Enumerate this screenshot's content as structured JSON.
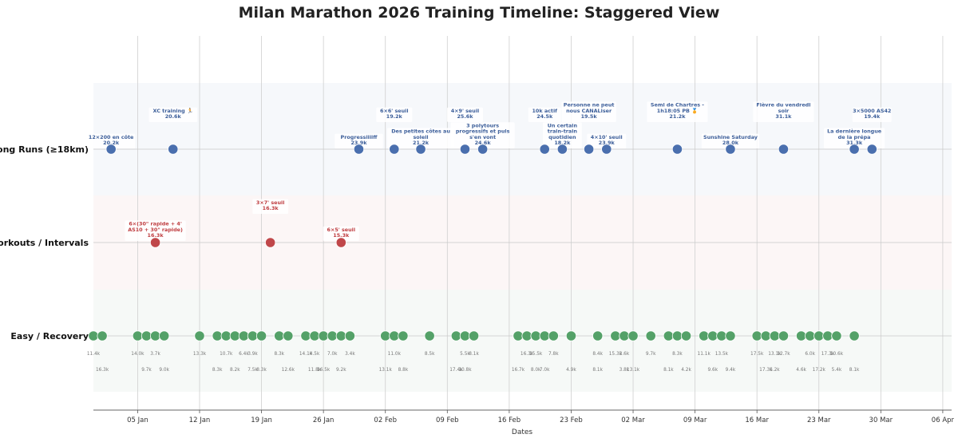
{
  "chart_data": {
    "type": "scatter",
    "title": "Milan Marathon 2026 Training Timeline: Staggered View",
    "xlabel": "Dates",
    "xlim": [
      "2025-12-31",
      "2026-04-07"
    ],
    "x_ticks": [
      {
        "date": "2026-01-05",
        "label": "05 Jan"
      },
      {
        "date": "2026-01-12",
        "label": "12 Jan"
      },
      {
        "date": "2026-01-19",
        "label": "19 Jan"
      },
      {
        "date": "2026-01-26",
        "label": "26 Jan"
      },
      {
        "date": "2026-02-02",
        "label": "02 Feb"
      },
      {
        "date": "2026-02-09",
        "label": "09 Feb"
      },
      {
        "date": "2026-02-16",
        "label": "16 Feb"
      },
      {
        "date": "2026-02-23",
        "label": "23 Feb"
      },
      {
        "date": "2026-03-02",
        "label": "02 Mar"
      },
      {
        "date": "2026-03-09",
        "label": "09 Mar"
      },
      {
        "date": "2026-03-16",
        "label": "16 Mar"
      },
      {
        "date": "2026-03-23",
        "label": "23 Mar"
      },
      {
        "date": "2026-03-30",
        "label": "30 Mar"
      },
      {
        "date": "2026-04-06",
        "label": "06 Apr"
      }
    ],
    "lanes": [
      "Long Runs (≥18km)",
      "Workouts / Intervals",
      "Easy / Recovery"
    ],
    "colors": {
      "long": "#4a6fae",
      "workout": "#c0474a",
      "easy": "#54a168",
      "long_band": "#f6f8fb",
      "workout_band": "#fcf6f6",
      "easy_band": "#f6f9f7",
      "long_text": "#3d5f9a",
      "workout_text": "#bf3d40"
    },
    "series": [
      {
        "name": "Long Runs (≥18km)",
        "points": [
          {
            "date": "2026-01-02",
            "label": "12×200 en côte",
            "distance": "20.2k",
            "level": 0
          },
          {
            "date": "2026-01-09",
            "label": "XC training 🏃",
            "distance": "20.6k",
            "level": 1
          },
          {
            "date": "2026-01-30",
            "label": "Progressiiiiff",
            "distance": "23.9k",
            "level": 0
          },
          {
            "date": "2026-02-03",
            "label": "6×6' seuil",
            "distance": "19.2k",
            "level": 1
          },
          {
            "date": "2026-02-06",
            "label": "Des petites côtes au soleil",
            "distance": "21.2k",
            "level": 0
          },
          {
            "date": "2026-02-11",
            "label": "4×9' seuil",
            "distance": "25.6k",
            "level": 1
          },
          {
            "date": "2026-02-13",
            "label": "3 polytours progressifs et puis s'en vont",
            "distance": "24.6k",
            "level": 0
          },
          {
            "date": "2026-02-20",
            "label": "10k actif",
            "distance": "24.5k",
            "level": 1
          },
          {
            "date": "2026-02-22",
            "label": "Un certain train-train quotidien",
            "distance": "18.2k",
            "level": 0
          },
          {
            "date": "2026-02-25",
            "label": "Personne ne peut nous CANALiser",
            "distance": "19.5k",
            "level": 1
          },
          {
            "date": "2026-02-27",
            "label": "4×10' seuil",
            "distance": "23.9k",
            "level": 0
          },
          {
            "date": "2026-03-07",
            "label": "Semi de Chartres - 1h18:05 PB 🏅",
            "distance": "21.2k",
            "level": 1
          },
          {
            "date": "2026-03-13",
            "label": "Sunshine Saturday",
            "distance": "28.0k",
            "level": 0
          },
          {
            "date": "2026-03-19",
            "label": "Fièvre du vendredi soir",
            "distance": "31.1k",
            "level": 1
          },
          {
            "date": "2026-03-27",
            "label": "La dernière longue de la prépa",
            "distance": "31.3k",
            "level": 0
          },
          {
            "date": "2026-03-29",
            "label": "3×5000 AS42",
            "distance": "19.4k",
            "level": 1
          }
        ]
      },
      {
        "name": "Workouts / Intervals",
        "points": [
          {
            "date": "2026-01-07",
            "label": "6×(30\" rapide + 4' AS10 + 30\" rapide)",
            "distance": "16.3k",
            "level": 0
          },
          {
            "date": "2026-01-20",
            "label": "3×7' seuil",
            "distance": "16.3k",
            "level": 1
          },
          {
            "date": "2026-01-28",
            "label": "6×5' seuil",
            "distance": "15.3k",
            "level": 0
          }
        ]
      },
      {
        "name": "Easy / Recovery",
        "points": [
          {
            "date": "2025-12-31",
            "distance": "11.4k",
            "level": 0
          },
          {
            "date": "2026-01-01",
            "distance": "16.3k",
            "level": 1
          },
          {
            "date": "2026-01-05",
            "distance": "14.0k",
            "level": 0
          },
          {
            "date": "2026-01-06",
            "distance": "9.7k",
            "level": 1
          },
          {
            "date": "2026-01-07",
            "distance": "3.7k",
            "level": 0
          },
          {
            "date": "2026-01-08",
            "distance": "9.0k",
            "level": 1
          },
          {
            "date": "2026-01-12",
            "distance": "13.3k",
            "level": 0
          },
          {
            "date": "2026-01-14",
            "distance": "8.3k",
            "level": 1
          },
          {
            "date": "2026-01-15",
            "distance": "10.7k",
            "level": 0
          },
          {
            "date": "2026-01-16",
            "distance": "8.2k",
            "level": 1
          },
          {
            "date": "2026-01-17",
            "distance": "6.4k",
            "level": 0
          },
          {
            "date": "2026-01-18",
            "distance": "7.5k",
            "level": 1
          },
          {
            "date": "2026-01-18",
            "distance": "3.9k",
            "level": 0
          },
          {
            "date": "2026-01-19",
            "distance": "8.3k",
            "level": 1
          },
          {
            "date": "2026-01-21",
            "distance": "8.3k",
            "level": 0
          },
          {
            "date": "2026-01-22",
            "distance": "12.6k",
            "level": 1
          },
          {
            "date": "2026-01-24",
            "distance": "14.1k",
            "level": 0
          },
          {
            "date": "2026-01-25",
            "distance": "11.8k",
            "level": 1
          },
          {
            "date": "2026-01-25",
            "distance": "4.5k",
            "level": 0
          },
          {
            "date": "2026-01-26",
            "distance": "16.5k",
            "level": 1
          },
          {
            "date": "2026-01-27",
            "distance": "7.0k",
            "level": 0
          },
          {
            "date": "2026-01-28",
            "distance": "9.2k",
            "level": 1
          },
          {
            "date": "2026-01-29",
            "distance": "3.4k",
            "level": 0
          },
          {
            "date": "2026-02-02",
            "distance": "13.1k",
            "level": 1
          },
          {
            "date": "2026-02-03",
            "distance": "11.0k",
            "level": 0
          },
          {
            "date": "2026-02-04",
            "distance": "8.8k",
            "level": 1
          },
          {
            "date": "2026-02-07",
            "distance": "8.5k",
            "level": 0
          },
          {
            "date": "2026-02-10",
            "distance": "17.4k",
            "level": 1
          },
          {
            "date": "2026-02-11",
            "distance": "5.5k",
            "level": 0
          },
          {
            "date": "2026-02-11",
            "distance": "10.8k",
            "level": 1
          },
          {
            "date": "2026-02-12",
            "distance": "8.1k",
            "level": 0
          },
          {
            "date": "2026-02-17",
            "distance": "16.7k",
            "level": 1
          },
          {
            "date": "2026-02-18",
            "distance": "16.3k",
            "level": 0
          },
          {
            "date": "2026-02-19",
            "distance": "8.0k",
            "level": 1
          },
          {
            "date": "2026-02-19",
            "distance": "15.5k",
            "level": 0
          },
          {
            "date": "2026-02-20",
            "distance": "7.0k",
            "level": 1
          },
          {
            "date": "2026-02-21",
            "distance": "7.8k",
            "level": 0
          },
          {
            "date": "2026-02-23",
            "distance": "4.9k",
            "level": 1
          },
          {
            "date": "2026-02-26",
            "distance": "8.4k",
            "level": 0
          },
          {
            "date": "2026-02-26",
            "distance": "8.1k",
            "level": 1
          },
          {
            "date": "2026-02-28",
            "distance": "15.3k",
            "level": 0
          },
          {
            "date": "2026-03-01",
            "distance": "3.6k",
            "level": 0
          },
          {
            "date": "2026-03-01",
            "distance": "3.8k",
            "level": 1
          },
          {
            "date": "2026-03-02",
            "distance": "13.1k",
            "level": 1
          },
          {
            "date": "2026-03-04",
            "distance": "9.7k",
            "level": 0
          },
          {
            "date": "2026-03-06",
            "distance": "8.1k",
            "level": 1
          },
          {
            "date": "2026-03-07",
            "distance": "8.3k",
            "level": 0
          },
          {
            "date": "2026-03-08",
            "distance": "4.2k",
            "level": 1
          },
          {
            "date": "2026-03-10",
            "distance": "11.1k",
            "level": 0
          },
          {
            "date": "2026-03-11",
            "distance": "9.6k",
            "level": 1
          },
          {
            "date": "2026-03-12",
            "distance": "13.5k",
            "level": 0
          },
          {
            "date": "2026-03-13",
            "distance": "9.4k",
            "level": 1
          },
          {
            "date": "2026-03-16",
            "distance": "17.5k",
            "level": 0
          },
          {
            "date": "2026-03-17",
            "distance": "17.3k",
            "level": 1
          },
          {
            "date": "2026-03-18",
            "distance": "13.1k",
            "level": 0
          },
          {
            "date": "2026-03-18",
            "distance": "6.2k",
            "level": 1
          },
          {
            "date": "2026-03-19",
            "distance": "12.7k",
            "level": 0
          },
          {
            "date": "2026-03-21",
            "distance": "4.6k",
            "level": 1
          },
          {
            "date": "2026-03-22",
            "distance": "6.0k",
            "level": 0
          },
          {
            "date": "2026-03-23",
            "distance": "17.2k",
            "level": 1
          },
          {
            "date": "2026-03-24",
            "distance": "17.3k",
            "level": 0
          },
          {
            "date": "2026-03-25",
            "distance": "5.4k",
            "level": 1
          },
          {
            "date": "2026-03-25",
            "distance": "10.6k",
            "level": 0
          },
          {
            "date": "2026-03-27",
            "distance": "8.1k",
            "level": 1
          }
        ]
      }
    ]
  }
}
